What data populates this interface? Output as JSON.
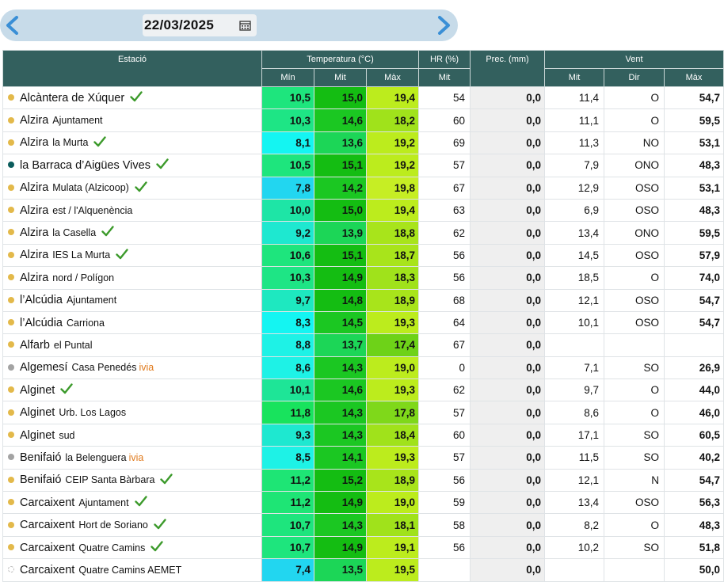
{
  "date": {
    "value": "22/03/2025"
  },
  "headers": {
    "station": "Estació",
    "temperature": "Temperatura (°C)",
    "humidity": "HR (%)",
    "precip": "Prec. (mm)",
    "wind": "Vent",
    "min": "Mín",
    "mit": "Mit",
    "max": "Màx",
    "hr_mit": "Mit",
    "wind_mit": "Mit",
    "wind_dir": "Dir",
    "wind_max": "Màx"
  },
  "colors": {
    "header": "#33605e",
    "dot_yellow": "#e3b94a",
    "dot_teal": "#0b5c5c",
    "dot_gray": "#a3a3a3",
    "check": "#3c9a2b"
  },
  "rows": [
    {
      "name": "Alcàntera de Xúquer",
      "sub": "",
      "ivia": "",
      "dot": "yellow",
      "check": true,
      "min": "10,5",
      "mit": "15,0",
      "max": "19,4",
      "hr": "54",
      "prec": "0,0",
      "wmit": "11,4",
      "wdir": "O",
      "wmax": "54,7",
      "c": [
        "#1ee57d",
        "#14bd12",
        "#bcec1d"
      ]
    },
    {
      "name": "Alzira",
      "sub": "Ajuntament",
      "ivia": "",
      "dot": "yellow",
      "check": false,
      "min": "10,3",
      "mit": "14,6",
      "max": "18,2",
      "hr": "60",
      "prec": "0,0",
      "wmit": "11,1",
      "wdir": "O",
      "wmax": "59,5",
      "c": [
        "#1ee585",
        "#1bc722",
        "#a0e21b"
      ]
    },
    {
      "name": "Alzira",
      "sub": "la Murta",
      "ivia": "",
      "dot": "yellow",
      "check": true,
      "min": "8,1",
      "mit": "13,6",
      "max": "19,2",
      "hr": "69",
      "prec": "0,0",
      "wmit": "11,3",
      "wdir": "NO",
      "wmax": "53,1",
      "c": [
        "#14f5f2",
        "#1cd657",
        "#bcec1d"
      ]
    },
    {
      "name": "la Barraca d’Aigües Vives",
      "sub": "",
      "ivia": "",
      "dot": "teal",
      "check": true,
      "min": "10,5",
      "mit": "15,1",
      "max": "19,2",
      "hr": "57",
      "prec": "0,0",
      "wmit": "7,9",
      "wdir": "ONO",
      "wmax": "48,3",
      "c": [
        "#1ee57d",
        "#14bd12",
        "#bcec1d"
      ]
    },
    {
      "name": "Alzira",
      "sub": "Mulata (Alzicoop)",
      "ivia": "",
      "dot": "yellow",
      "check": true,
      "min": "7,8",
      "mit": "14,2",
      "max": "19,8",
      "hr": "67",
      "prec": "0,0",
      "wmit": "12,9",
      "wdir": "OSO",
      "wmax": "53,1",
      "c": [
        "#22d6f0",
        "#1bc722",
        "#c6ee24"
      ]
    },
    {
      "name": "Alzira",
      "sub": "est / l'Alquenència",
      "ivia": "",
      "dot": "yellow",
      "check": false,
      "min": "10,0",
      "mit": "15,0",
      "max": "19,4",
      "hr": "63",
      "prec": "0,0",
      "wmit": "6,9",
      "wdir": "OSO",
      "wmax": "48,3",
      "c": [
        "#1ee5a6",
        "#14bd12",
        "#bcec1d"
      ]
    },
    {
      "name": "Alzira",
      "sub": "la Casella",
      "ivia": "",
      "dot": "yellow",
      "check": true,
      "min": "9,2",
      "mit": "13,9",
      "max": "18,8",
      "hr": "62",
      "prec": "0,0",
      "wmit": "13,4",
      "wdir": "ONO",
      "wmax": "59,5",
      "c": [
        "#1ee8d0",
        "#1cd657",
        "#a8e41b"
      ]
    },
    {
      "name": "Alzira",
      "sub": "IES La Murta",
      "ivia": "",
      "dot": "yellow",
      "check": true,
      "min": "10,6",
      "mit": "15,1",
      "max": "18,7",
      "hr": "56",
      "prec": "0,0",
      "wmit": "14,5",
      "wdir": "OSO",
      "wmax": "57,9",
      "c": [
        "#1ee57d",
        "#14bd12",
        "#a8e41b"
      ]
    },
    {
      "name": "Alzira",
      "sub": "nord / Polígon",
      "ivia": "",
      "dot": "yellow",
      "check": false,
      "min": "10,3",
      "mit": "14,9",
      "max": "18,3",
      "hr": "56",
      "prec": "0,0",
      "wmit": "18,5",
      "wdir": "O",
      "wmax": "74,0",
      "c": [
        "#1ee585",
        "#14bd12",
        "#a0e21b"
      ]
    },
    {
      "name": "l’Alcúdia",
      "sub": "Ajuntament",
      "ivia": "",
      "dot": "yellow",
      "check": false,
      "min": "9,7",
      "mit": "14,8",
      "max": "18,9",
      "hr": "68",
      "prec": "0,0",
      "wmit": "12,1",
      "wdir": "OSO",
      "wmax": "54,7",
      "c": [
        "#1ee8c0",
        "#14bd12",
        "#a8e41b"
      ]
    },
    {
      "name": "l’Alcúdia",
      "sub": "Carriona",
      "ivia": "",
      "dot": "yellow",
      "check": false,
      "min": "8,3",
      "mit": "14,5",
      "max": "19,3",
      "hr": "64",
      "prec": "0,0",
      "wmit": "10,1",
      "wdir": "OSO",
      "wmax": "54,7",
      "c": [
        "#14f5f2",
        "#1bc722",
        "#bcec1d"
      ]
    },
    {
      "name": "Alfarb",
      "sub": "el Puntal",
      "ivia": "",
      "dot": "yellow",
      "check": false,
      "min": "8,8",
      "mit": "13,7",
      "max": "17,4",
      "hr": "67",
      "prec": "0,0",
      "wmit": "",
      "wdir": "",
      "wmax": "",
      "c": [
        "#1ef2e6",
        "#1cd657",
        "#6ed218"
      ]
    },
    {
      "name": "Algemesí",
      "sub": "Casa Penedés",
      "ivia": "ivia",
      "dot": "gray",
      "check": false,
      "min": "8,6",
      "mit": "14,3",
      "max": "19,0",
      "hr": "0",
      "prec": "0,0",
      "wmit": "7,1",
      "wdir": "SO",
      "wmax": "26,9",
      "c": [
        "#1ef2e6",
        "#1bc722",
        "#bcec1d"
      ]
    },
    {
      "name": "Alginet",
      "sub": "",
      "ivia": "",
      "dot": "yellow",
      "check": true,
      "min": "10,1",
      "mit": "14,6",
      "max": "19,3",
      "hr": "62",
      "prec": "0,0",
      "wmit": "9,7",
      "wdir": "O",
      "wmax": "44,0",
      "c": [
        "#1ee597",
        "#1bc722",
        "#bcec1d"
      ]
    },
    {
      "name": "Alginet",
      "sub": "Urb. Los Lagos",
      "ivia": "",
      "dot": "yellow",
      "check": false,
      "min": "11,8",
      "mit": "14,3",
      "max": "17,8",
      "hr": "57",
      "prec": "0,0",
      "wmit": "8,6",
      "wdir": "O",
      "wmax": "46,0",
      "c": [
        "#18e35d",
        "#1bc722",
        "#7fd81a"
      ]
    },
    {
      "name": "Alginet",
      "sub": "sud",
      "ivia": "",
      "dot": "yellow",
      "check": false,
      "min": "9,3",
      "mit": "14,3",
      "max": "18,4",
      "hr": "60",
      "prec": "0,0",
      "wmit": "17,1",
      "wdir": "SO",
      "wmax": "60,5",
      "c": [
        "#1ee8d0",
        "#1bc722",
        "#a0e21b"
      ]
    },
    {
      "name": "Benifaió",
      "sub": "la Belenguera",
      "ivia": "ivia",
      "dot": "gray",
      "check": false,
      "min": "8,5",
      "mit": "14,1",
      "max": "19,3",
      "hr": "57",
      "prec": "0,0",
      "wmit": "11,5",
      "wdir": "SO",
      "wmax": "40,2",
      "c": [
        "#1ef2e6",
        "#1bc722",
        "#bcec1d"
      ]
    },
    {
      "name": "Benifaió",
      "sub": "CEIP Santa Bàrbara",
      "ivia": "",
      "dot": "yellow",
      "check": true,
      "min": "11,2",
      "mit": "15,2",
      "max": "18,9",
      "hr": "56",
      "prec": "0,0",
      "wmit": "12,1",
      "wdir": "N",
      "wmax": "54,7",
      "c": [
        "#1ee575",
        "#14bd12",
        "#a8e41b"
      ]
    },
    {
      "name": "Carcaixent",
      "sub": "Ajuntament",
      "ivia": "",
      "dot": "yellow",
      "check": true,
      "min": "11,2",
      "mit": "14,9",
      "max": "19,0",
      "hr": "59",
      "prec": "0,0",
      "wmit": "13,4",
      "wdir": "OSO",
      "wmax": "56,3",
      "c": [
        "#1ee575",
        "#14bd12",
        "#bcec1d"
      ]
    },
    {
      "name": "Carcaixent",
      "sub": "Hort de Soriano",
      "ivia": "",
      "dot": "yellow",
      "check": true,
      "min": "10,7",
      "mit": "14,3",
      "max": "18,1",
      "hr": "58",
      "prec": "0,0",
      "wmit": "8,2",
      "wdir": "O",
      "wmax": "48,3",
      "c": [
        "#1ee57d",
        "#1bc722",
        "#a0e21b"
      ]
    },
    {
      "name": "Carcaixent",
      "sub": "Quatre Camins",
      "ivia": "",
      "dot": "yellow",
      "check": true,
      "min": "10,7",
      "mit": "14,9",
      "max": "19,1",
      "hr": "56",
      "prec": "0,0",
      "wmit": "10,2",
      "wdir": "SO",
      "wmax": "51,8",
      "c": [
        "#1ee57d",
        "#14bd12",
        "#bcec1d"
      ]
    },
    {
      "name": "Carcaixent",
      "sub": "Quatre Camins AEMET",
      "ivia": "",
      "dot": "empty",
      "check": false,
      "min": "7,4",
      "mit": "13,5",
      "max": "19,5",
      "hr": "",
      "prec": "0,0",
      "wmit": "",
      "wdir": "",
      "wmax": "50,0",
      "c": [
        "#22d6f0",
        "#1cd657",
        "#bcec1d"
      ]
    }
  ]
}
